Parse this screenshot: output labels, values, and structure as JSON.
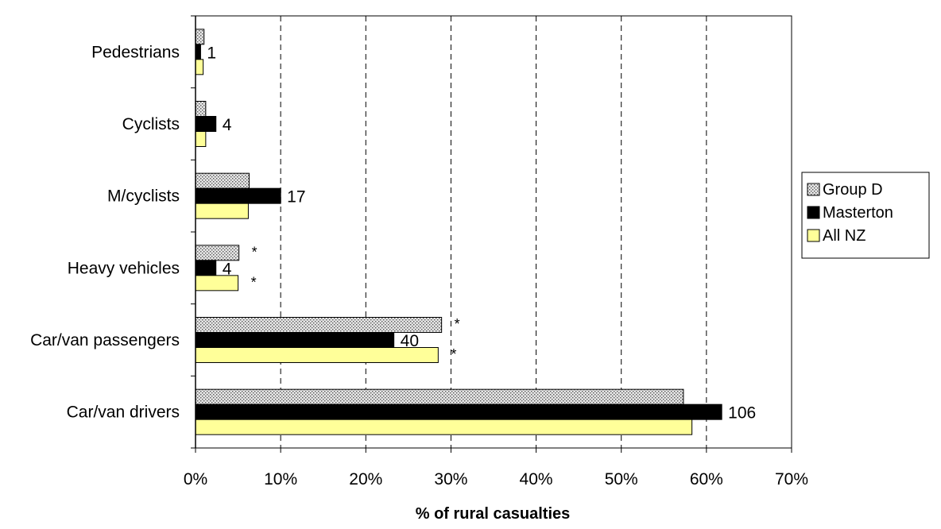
{
  "chart_data": {
    "type": "bar",
    "orientation": "horizontal",
    "categories": [
      "Pedestrians",
      "Cyclists",
      "M/cyclists",
      "Heavy vehicles",
      "Car/van passengers",
      "Car/van drivers"
    ],
    "series": [
      {
        "name": "Group D",
        "values": [
          1.0,
          1.2,
          6.3,
          5.1,
          28.9,
          57.3
        ],
        "color": "#dcdcdc",
        "pattern": "dotted"
      },
      {
        "name": "Masterton",
        "values": [
          0.6,
          2.4,
          10.0,
          2.4,
          23.3,
          61.8
        ],
        "color": "#000000"
      },
      {
        "name": "All NZ",
        "values": [
          0.9,
          1.2,
          6.2,
          5.0,
          28.5,
          58.3
        ],
        "color": "#ffff99"
      }
    ],
    "data_labels": {
      "series": "Masterton",
      "values": [
        "1",
        "4",
        "17",
        "4",
        "40",
        "106"
      ]
    },
    "significance_markers": [
      {
        "category": "Heavy vehicles",
        "series": "Group D",
        "text": "*"
      },
      {
        "category": "Heavy vehicles",
        "series": "All NZ",
        "text": "*"
      },
      {
        "category": "Car/van passengers",
        "series": "Group D",
        "text": "*"
      },
      {
        "category": "Car/van passengers",
        "series": "All NZ",
        "text": "*"
      }
    ],
    "xlim": [
      0,
      70
    ],
    "xticks": [
      0,
      10,
      20,
      30,
      40,
      50,
      60,
      70
    ],
    "xtick_labels": [
      "0%",
      "10%",
      "20%",
      "30%",
      "40%",
      "50%",
      "60%",
      "70%"
    ],
    "xlabel": "% of rural casualties",
    "ylabel": "",
    "title": "",
    "grid": "vertical dashed",
    "legend_position": "right"
  }
}
